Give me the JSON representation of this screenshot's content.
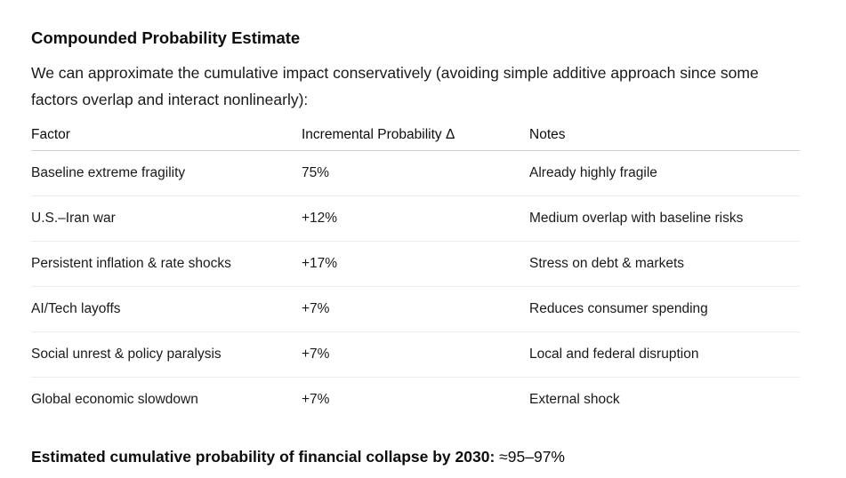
{
  "heading": "Compounded Probability Estimate",
  "intro": "We can approximate the cumulative impact conservatively (avoiding simple additive approach since some factors overlap and interact nonlinearly):",
  "table": {
    "headers": [
      "Factor",
      "Incremental Probability Δ",
      "Notes"
    ],
    "rows": [
      {
        "factor": "Baseline extreme fragility",
        "delta": "75%",
        "notes": "Already highly fragile"
      },
      {
        "factor": "U.S.–Iran war",
        "delta": "+12%",
        "notes": "Medium overlap with baseline risks"
      },
      {
        "factor": "Persistent inflation & rate shocks",
        "delta": "+17%",
        "notes": "Stress on debt & markets"
      },
      {
        "factor": "AI/Tech layoffs",
        "delta": "+7%",
        "notes": "Reduces consumer spending"
      },
      {
        "factor": "Social unrest & policy paralysis",
        "delta": "+7%",
        "notes": "Local and federal disruption"
      },
      {
        "factor": "Global economic slowdown",
        "delta": "+7%",
        "notes": "External shock"
      }
    ]
  },
  "summary": {
    "label": "Estimated cumulative probability of financial collapse by 2030",
    "separator": ":",
    "value": "≈95–97%"
  }
}
